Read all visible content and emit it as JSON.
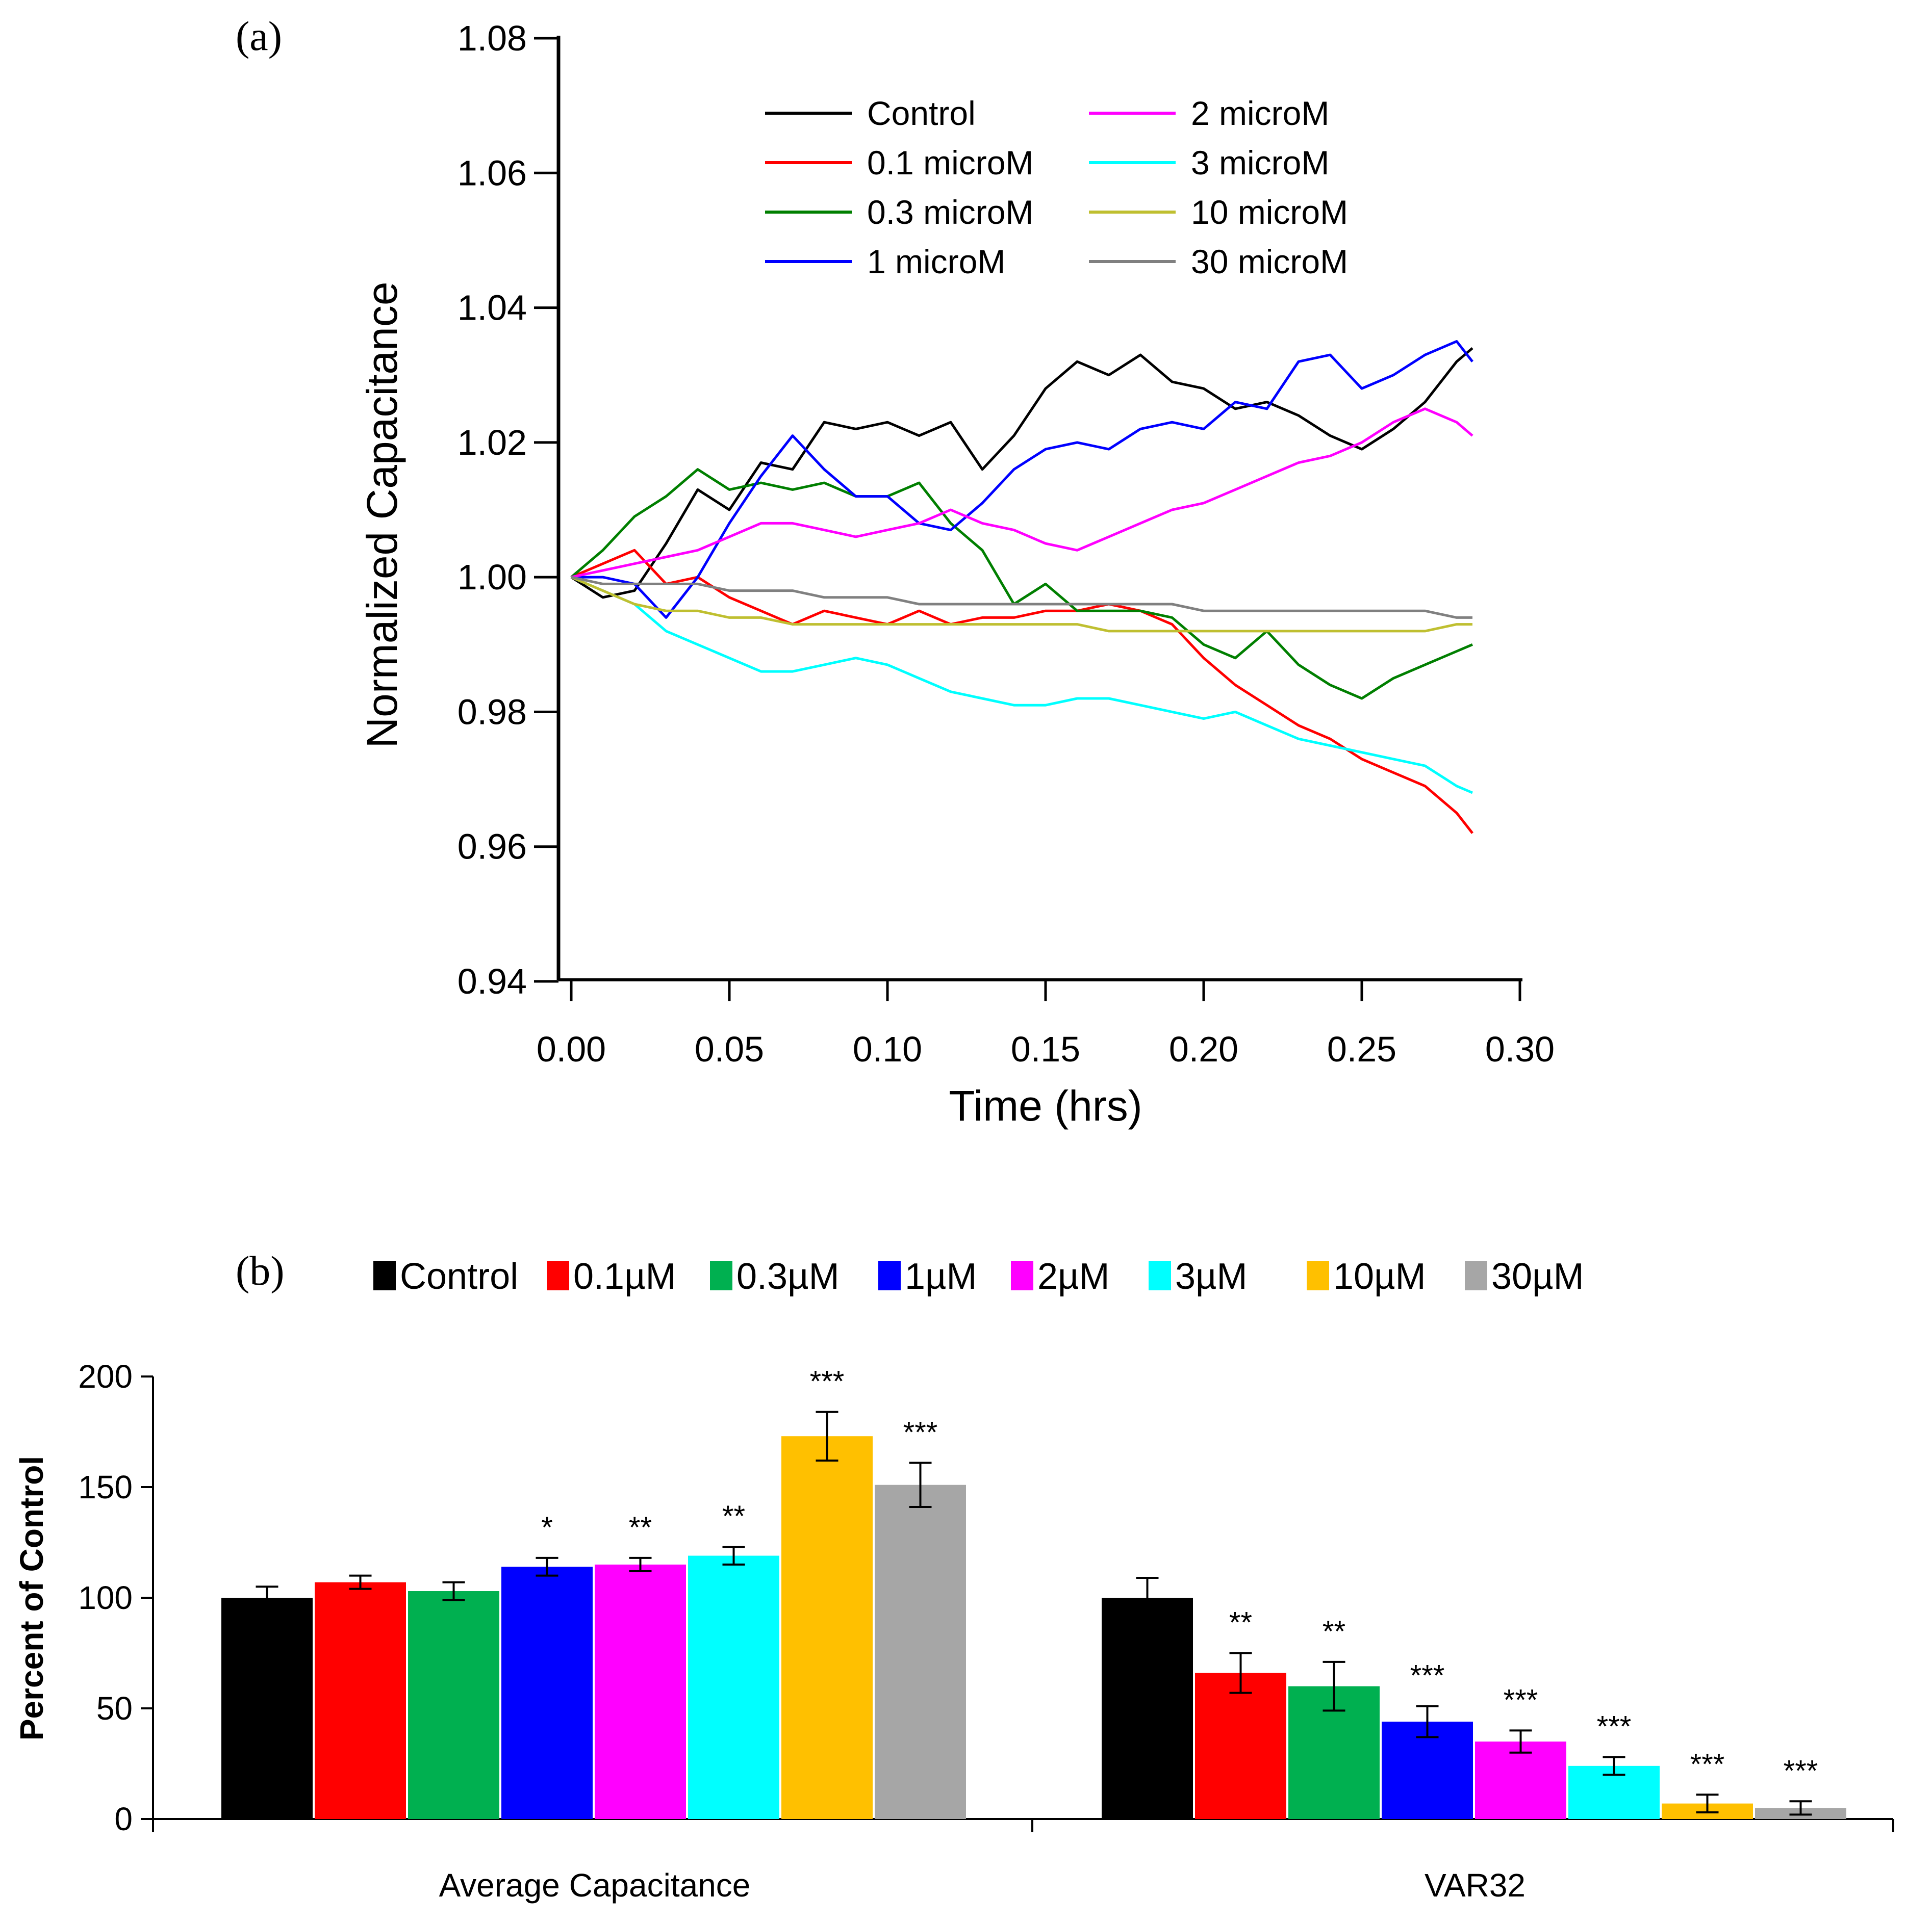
{
  "chart_data": [
    {
      "panel": "(a)",
      "type": "line",
      "xlabel": "Time (hrs)",
      "ylabel": "Normalized Capacitance",
      "xlim": [
        0.0,
        0.3
      ],
      "ylim": [
        0.94,
        1.08
      ],
      "xticks": [
        "0.00",
        "0.05",
        "0.10",
        "0.15",
        "0.20",
        "0.25",
        "0.30"
      ],
      "yticks": [
        "0.94",
        "0.96",
        "0.98",
        "1.00",
        "1.02",
        "1.04",
        "1.06",
        "1.08"
      ],
      "x": [
        0.0,
        0.01,
        0.02,
        0.03,
        0.04,
        0.05,
        0.06,
        0.07,
        0.08,
        0.09,
        0.1,
        0.11,
        0.12,
        0.13,
        0.14,
        0.15,
        0.16,
        0.17,
        0.18,
        0.19,
        0.2,
        0.21,
        0.22,
        0.23,
        0.24,
        0.25,
        0.26,
        0.27,
        0.28,
        0.285
      ],
      "series": [
        {
          "name": "Control",
          "color": "#000000",
          "values": [
            1.0,
            0.997,
            0.998,
            1.005,
            1.013,
            1.01,
            1.017,
            1.016,
            1.023,
            1.022,
            1.023,
            1.021,
            1.023,
            1.016,
            1.021,
            1.028,
            1.032,
            1.03,
            1.033,
            1.029,
            1.028,
            1.025,
            1.026,
            1.024,
            1.021,
            1.019,
            1.022,
            1.026,
            1.032,
            1.034
          ]
        },
        {
          "name": "0.1 microM",
          "color": "#ff0000",
          "values": [
            1.0,
            1.002,
            1.004,
            0.999,
            1.0,
            0.997,
            0.995,
            0.993,
            0.995,
            0.994,
            0.993,
            0.995,
            0.993,
            0.994,
            0.994,
            0.995,
            0.995,
            0.996,
            0.995,
            0.993,
            0.988,
            0.984,
            0.981,
            0.978,
            0.976,
            0.973,
            0.971,
            0.969,
            0.965,
            0.962
          ]
        },
        {
          "name": "0.3 microM",
          "color": "#007f00",
          "values": [
            1.0,
            1.004,
            1.009,
            1.012,
            1.016,
            1.013,
            1.014,
            1.013,
            1.014,
            1.012,
            1.012,
            1.014,
            1.008,
            1.004,
            0.996,
            0.999,
            0.995,
            0.995,
            0.995,
            0.994,
            0.99,
            0.988,
            0.992,
            0.987,
            0.984,
            0.982,
            0.985,
            0.987,
            0.989,
            0.99
          ]
        },
        {
          "name": "1 microM",
          "color": "#0000ff",
          "values": [
            1.0,
            1.0,
            0.999,
            0.994,
            1.0,
            1.008,
            1.015,
            1.021,
            1.016,
            1.012,
            1.012,
            1.008,
            1.007,
            1.011,
            1.016,
            1.019,
            1.02,
            1.019,
            1.022,
            1.023,
            1.022,
            1.026,
            1.025,
            1.032,
            1.033,
            1.028,
            1.03,
            1.033,
            1.035,
            1.032
          ]
        },
        {
          "name": "2 microM",
          "color": "#ff00ff",
          "values": [
            1.0,
            1.001,
            1.002,
            1.003,
            1.004,
            1.006,
            1.008,
            1.008,
            1.007,
            1.006,
            1.007,
            1.008,
            1.01,
            1.008,
            1.007,
            1.005,
            1.004,
            1.006,
            1.008,
            1.01,
            1.011,
            1.013,
            1.015,
            1.017,
            1.018,
            1.02,
            1.023,
            1.025,
            1.023,
            1.021
          ]
        },
        {
          "name": "3 microM",
          "color": "#00ffff",
          "values": [
            1.0,
            0.998,
            0.996,
            0.992,
            0.99,
            0.988,
            0.986,
            0.986,
            0.987,
            0.988,
            0.987,
            0.985,
            0.983,
            0.982,
            0.981,
            0.981,
            0.982,
            0.982,
            0.981,
            0.98,
            0.979,
            0.98,
            0.978,
            0.976,
            0.975,
            0.974,
            0.973,
            0.972,
            0.969,
            0.968
          ]
        },
        {
          "name": "10 microM",
          "color": "#bfbf30",
          "values": [
            1.0,
            0.998,
            0.996,
            0.995,
            0.995,
            0.994,
            0.994,
            0.993,
            0.993,
            0.993,
            0.993,
            0.993,
            0.993,
            0.993,
            0.993,
            0.993,
            0.993,
            0.992,
            0.992,
            0.992,
            0.992,
            0.992,
            0.992,
            0.992,
            0.992,
            0.992,
            0.992,
            0.992,
            0.993,
            0.993
          ]
        },
        {
          "name": "30 microM",
          "color": "#808080",
          "values": [
            1.0,
            0.999,
            0.999,
            0.999,
            0.999,
            0.998,
            0.998,
            0.998,
            0.997,
            0.997,
            0.997,
            0.996,
            0.996,
            0.996,
            0.996,
            0.996,
            0.996,
            0.996,
            0.996,
            0.996,
            0.995,
            0.995,
            0.995,
            0.995,
            0.995,
            0.995,
            0.995,
            0.995,
            0.994,
            0.994
          ]
        }
      ]
    },
    {
      "panel": "(b)",
      "type": "bar",
      "ylabel": "Percent of Control",
      "ylim": [
        0,
        200
      ],
      "yticks": [
        "0",
        "50",
        "100",
        "150",
        "200"
      ],
      "categories": [
        "Average Capacitance",
        "VAR32"
      ],
      "series": [
        {
          "name": "Control",
          "color": "#000000",
          "values": [
            100,
            100
          ],
          "errors": [
            5,
            9
          ],
          "sig": [
            "",
            ""
          ]
        },
        {
          "name": "0.1µM",
          "color": "#ff0000",
          "values": [
            107,
            66
          ],
          "errors": [
            3,
            9
          ],
          "sig": [
            "",
            "**"
          ]
        },
        {
          "name": "0.3µM",
          "color": "#00b050",
          "values": [
            103,
            60
          ],
          "errors": [
            4,
            11
          ],
          "sig": [
            "",
            "**"
          ]
        },
        {
          "name": "1µM",
          "color": "#0000ff",
          "values": [
            114,
            44
          ],
          "errors": [
            4,
            7
          ],
          "sig": [
            "*",
            "***"
          ]
        },
        {
          "name": "2µM",
          "color": "#ff00ff",
          "values": [
            115,
            35
          ],
          "errors": [
            3,
            5
          ],
          "sig": [
            "**",
            "***"
          ]
        },
        {
          "name": "3µM",
          "color": "#00ffff",
          "values": [
            119,
            24
          ],
          "errors": [
            4,
            4
          ],
          "sig": [
            "**",
            "***"
          ]
        },
        {
          "name": "10µM",
          "color": "#ffc000",
          "values": [
            173,
            7
          ],
          "errors": [
            11,
            4
          ],
          "sig": [
            "***",
            "***"
          ]
        },
        {
          "name": "30µM",
          "color": "#a6a6a6",
          "values": [
            151,
            5
          ],
          "errors": [
            10,
            3
          ],
          "sig": [
            "***",
            "***"
          ]
        }
      ]
    }
  ]
}
